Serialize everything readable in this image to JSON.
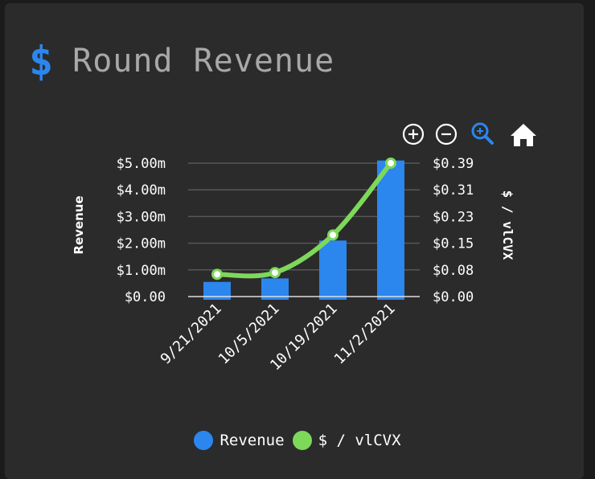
{
  "header": {
    "icon": "dollar-sign-icon",
    "title": "Round Revenue"
  },
  "toolbar": {
    "icons": [
      "zoom-in-icon",
      "zoom-out-icon",
      "zoom-select-icon",
      "home-icon"
    ],
    "active_color": "#2b86ee"
  },
  "chart_data": {
    "type": "bar",
    "categories": [
      "9/21/2021",
      "10/5/2021",
      "10/19/2021",
      "11/2/2021"
    ],
    "series": [
      {
        "name": "Revenue",
        "type": "bar",
        "axis": "left",
        "color": "#2b86ee",
        "values": [
          0.55,
          0.68,
          2.1,
          5.1
        ]
      },
      {
        "name": "$ / vlCVX",
        "type": "line",
        "axis": "right",
        "color": "#7ed85a",
        "values": [
          0.065,
          0.07,
          0.18,
          0.39
        ]
      }
    ],
    "ylabel": "Revenue",
    "y2label": "$ / vlCVX",
    "y_ticks": [
      "$0.00",
      "$1.00m",
      "$2.00m",
      "$3.00m",
      "$4.00m",
      "$5.00m"
    ],
    "y2_ticks": [
      "$0.00",
      "$0.08",
      "$0.15",
      "$0.23",
      "$0.31",
      "$0.39"
    ],
    "ylim": [
      0,
      5
    ],
    "y2lim": [
      0,
      0.39
    ],
    "grid": true,
    "legend_position": "bottom"
  }
}
